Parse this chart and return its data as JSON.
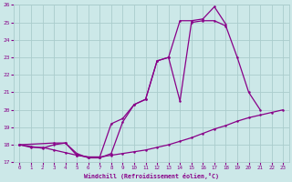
{
  "xlabel": "Windchill (Refroidissement éolien,°C)",
  "xlim": [
    -0.5,
    23.5
  ],
  "ylim": [
    17,
    26
  ],
  "yticks": [
    17,
    18,
    19,
    20,
    21,
    22,
    23,
    24,
    25,
    26
  ],
  "xticks": [
    0,
    1,
    2,
    3,
    4,
    5,
    6,
    7,
    8,
    9,
    10,
    11,
    12,
    13,
    14,
    15,
    16,
    17,
    18,
    19,
    20,
    21,
    22,
    23
  ],
  "bg_color": "#cce8e8",
  "grid_color": "#aacccc",
  "line_color": "#880088",
  "curve1_x": [
    0,
    1,
    2,
    3,
    4,
    5,
    6,
    7,
    8,
    9,
    10,
    11,
    12,
    13,
    14,
    15,
    16,
    17,
    18,
    19,
    20,
    21,
    22,
    23
  ],
  "curve1_y": [
    18.0,
    17.85,
    17.85,
    17.7,
    17.55,
    17.4,
    17.3,
    17.3,
    17.4,
    17.5,
    17.6,
    17.7,
    17.85,
    18.0,
    18.2,
    18.4,
    18.65,
    18.9,
    19.1,
    19.35,
    19.55,
    19.7,
    19.85,
    20.0
  ],
  "curve2_x": [
    0,
    1,
    2,
    3,
    4,
    5,
    6,
    7,
    8,
    9,
    10,
    11,
    12,
    13,
    14,
    15,
    16,
    17,
    18,
    19,
    20,
    21
  ],
  "curve2_y": [
    18.0,
    17.9,
    17.8,
    18.0,
    18.1,
    17.4,
    17.3,
    17.3,
    19.2,
    19.5,
    20.3,
    20.6,
    22.8,
    23.0,
    20.5,
    25.0,
    25.1,
    25.1,
    24.8,
    23.0,
    21.0,
    20.0
  ],
  "curve3_x": [
    0,
    3,
    4,
    5,
    6,
    7,
    8,
    9,
    10,
    11,
    12,
    13,
    14,
    15,
    16,
    17,
    18
  ],
  "curve3_y": [
    18.0,
    18.1,
    18.1,
    17.5,
    17.25,
    17.25,
    17.5,
    19.3,
    20.3,
    20.6,
    22.8,
    23.0,
    25.1,
    25.1,
    25.2,
    25.9,
    24.9
  ]
}
